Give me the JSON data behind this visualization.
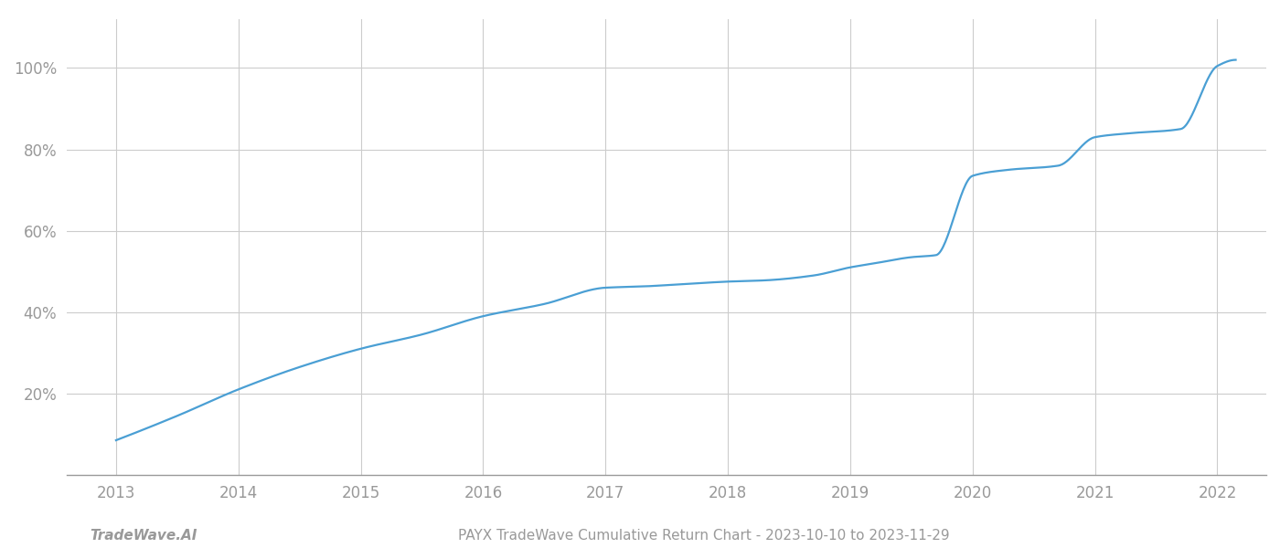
{
  "title": "PAYX TradeWave Cumulative Return Chart - 2023-10-10 to 2023-11-29",
  "watermark": "TradeWave.AI",
  "line_color": "#4a9fd4",
  "background_color": "#ffffff",
  "grid_color": "#cccccc",
  "x_years": [
    2013.0,
    2013.5,
    2014.0,
    2014.5,
    2015.0,
    2015.5,
    2016.0,
    2016.5,
    2017.0,
    2017.3,
    2017.7,
    2018.0,
    2018.3,
    2018.7,
    2019.0,
    2019.2,
    2019.5,
    2019.7,
    2020.0,
    2020.3,
    2020.7,
    2021.0,
    2021.3,
    2021.7,
    2022.0,
    2022.15
  ],
  "y_values": [
    0.085,
    0.145,
    0.21,
    0.265,
    0.31,
    0.345,
    0.39,
    0.42,
    0.46,
    0.463,
    0.47,
    0.475,
    0.478,
    0.49,
    0.51,
    0.52,
    0.535,
    0.54,
    0.735,
    0.75,
    0.76,
    0.83,
    0.84,
    0.85,
    1.005,
    1.02
  ],
  "xlim": [
    2012.6,
    2022.4
  ],
  "ylim": [
    0.0,
    1.12
  ],
  "yticks": [
    0.2,
    0.4,
    0.6,
    0.8,
    1.0
  ],
  "ytick_labels": [
    "20%",
    "40%",
    "60%",
    "80%",
    "100%"
  ],
  "xticks": [
    2013,
    2014,
    2015,
    2016,
    2017,
    2018,
    2019,
    2020,
    2021,
    2022
  ],
  "title_fontsize": 11,
  "watermark_fontsize": 11,
  "tick_fontsize": 12,
  "tick_color": "#999999",
  "spine_color": "#999999",
  "line_width": 1.6
}
